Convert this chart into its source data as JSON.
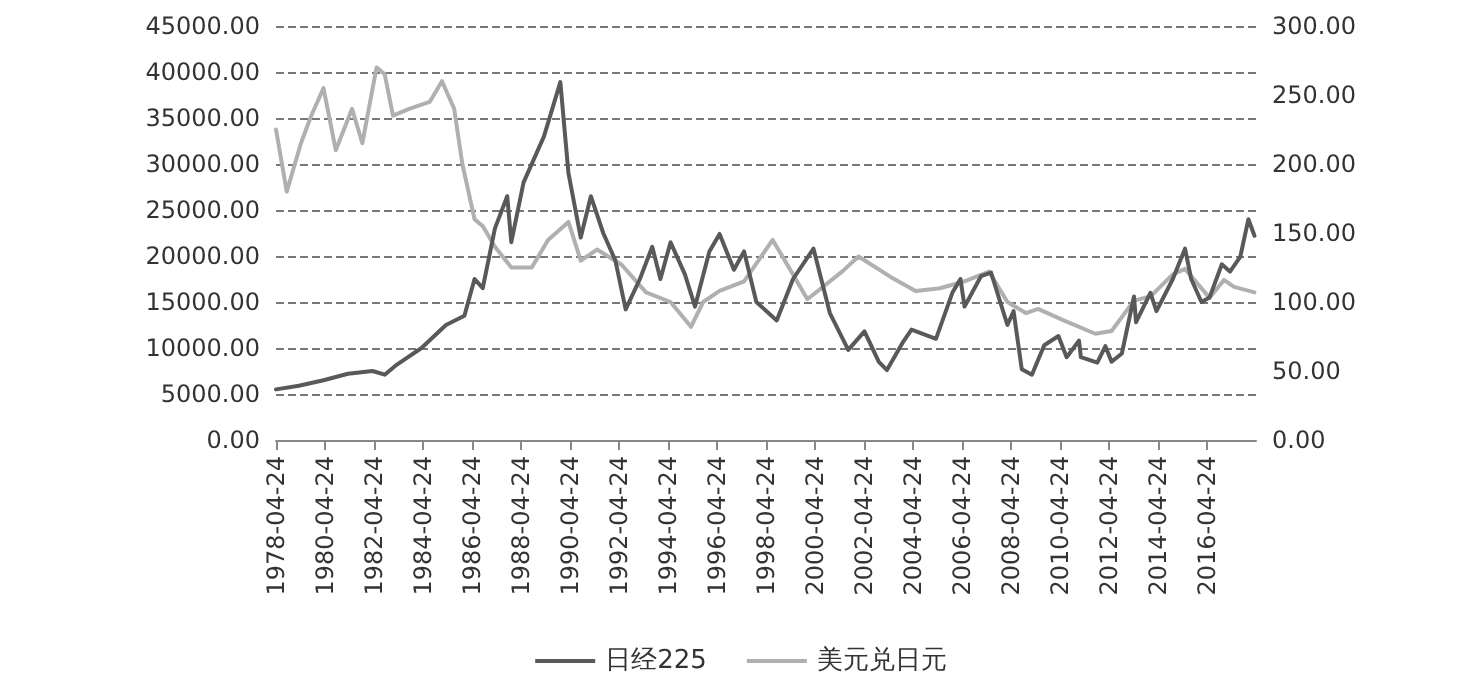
{
  "chart_data": {
    "type": "line",
    "xlim": [
      "1978-04-24",
      "2018-04-24"
    ],
    "xticks": [
      "1978-04-24",
      "1980-04-24",
      "1982-04-24",
      "1984-04-24",
      "1986-04-24",
      "1988-04-24",
      "1990-04-24",
      "1992-04-24",
      "1994-04-24",
      "1996-04-24",
      "1998-04-24",
      "2000-04-24",
      "2002-04-24",
      "2004-04-24",
      "2006-04-24",
      "2008-04-24",
      "2010-04-24",
      "2012-04-24",
      "2014-04-24",
      "2016-04-24"
    ],
    "ylim": [
      0,
      45000
    ],
    "yticks": [
      {
        "value": 0,
        "label": "0.00"
      },
      {
        "value": 5000,
        "label": "5000.00"
      },
      {
        "value": 10000,
        "label": "10000.00"
      },
      {
        "value": 15000,
        "label": "15000.00"
      },
      {
        "value": 20000,
        "label": "20000.00"
      },
      {
        "value": 25000,
        "label": "25000.00"
      },
      {
        "value": 30000,
        "label": "30000.00"
      },
      {
        "value": 35000,
        "label": "35000.00"
      },
      {
        "value": 40000,
        "label": "40000.00"
      },
      {
        "value": 45000,
        "label": "45000.00"
      }
    ],
    "y2lim": [
      0,
      300
    ],
    "y2ticks": [
      {
        "value": 0,
        "label": "0.00"
      },
      {
        "value": 50,
        "label": "50.00"
      },
      {
        "value": 100,
        "label": "100.00"
      },
      {
        "value": 150,
        "label": "150.00"
      },
      {
        "value": 200,
        "label": "200.00"
      },
      {
        "value": 250,
        "label": "250.00"
      },
      {
        "value": 300,
        "label": "300.00"
      }
    ],
    "grid": "y",
    "legend": "bottom",
    "marker": "none",
    "line_style": "solid",
    "series": [
      {
        "name": "日经225",
        "color": "#595959",
        "x": [
          "1978-04-24",
          "1979-04",
          "1980-04",
          "1981-04",
          "1982-04",
          "1982-10",
          "1983-04",
          "1984-04",
          "1985-04",
          "1986-01",
          "1986-06",
          "1986-10",
          "1987-04",
          "1987-10",
          "1987-12",
          "1988-06",
          "1989-04",
          "1989-12",
          "1990-04",
          "1990-10",
          "1991-03",
          "1991-09",
          "1992-03",
          "1992-08",
          "1993-03",
          "1993-09",
          "1994-01",
          "1994-06",
          "1995-01",
          "1995-06",
          "1996-01",
          "1996-06",
          "1997-01",
          "1997-06",
          "1997-12",
          "1998-10",
          "1999-06",
          "2000-04",
          "2000-12",
          "2001-09",
          "2002-05",
          "2002-12",
          "2003-04",
          "2003-12",
          "2004-04",
          "2005-04",
          "2005-12",
          "2006-04",
          "2006-06",
          "2007-02",
          "2007-07",
          "2008-03",
          "2008-06",
          "2008-10",
          "2009-03",
          "2009-09",
          "2010-04",
          "2010-08",
          "2011-02",
          "2011-03",
          "2011-11",
          "2012-03",
          "2012-06",
          "2012-11",
          "2013-05",
          "2013-06",
          "2014-01",
          "2014-04",
          "2014-12",
          "2015-06",
          "2015-09",
          "2016-02",
          "2016-06",
          "2016-12",
          "2017-04",
          "2017-09",
          "2018-01",
          "2018-04"
        ],
        "values": [
          5500,
          5900,
          6500,
          7200,
          7500,
          7100,
          8200,
          10000,
          12500,
          13500,
          17500,
          16500,
          23000,
          26500,
          21500,
          28000,
          33000,
          38900,
          29000,
          22000,
          26500,
          22500,
          19500,
          14200,
          17500,
          21000,
          17500,
          21500,
          18000,
          14500,
          20500,
          22400,
          18500,
          20500,
          15000,
          13000,
          17500,
          20800,
          13800,
          9800,
          11800,
          8500,
          7600,
          10700,
          12000,
          11000,
          16000,
          17500,
          14500,
          17800,
          18200,
          12500,
          14000,
          7700,
          7100,
          10300,
          11300,
          9000,
          10800,
          9000,
          8400,
          10200,
          8500,
          9400,
          15600,
          12800,
          16000,
          14000,
          17500,
          20800,
          17500,
          15000,
          15500,
          19100,
          18300,
          19900,
          24000,
          22200
        ]
      },
      {
        "name": "美元兑日元",
        "color": "#b0b0b0",
        "axis": "y2",
        "x": [
          "1978-04-24",
          "1978-10",
          "1979-05",
          "1979-10",
          "1980-04",
          "1980-10",
          "1981-06",
          "1981-11",
          "1982-06",
          "1982-10",
          "1983-02",
          "1983-10",
          "1984-08",
          "1985-02",
          "1985-08",
          "1985-12",
          "1986-06",
          "1986-10",
          "1987-04",
          "1987-12",
          "1988-10",
          "1989-06",
          "1990-04",
          "1990-10",
          "1991-06",
          "1992-06",
          "1993-06",
          "1994-06",
          "1995-04",
          "1995-10",
          "1996-06",
          "1997-06",
          "1998-08",
          "1999-06",
          "2000-01",
          "2001-06",
          "2002-02",
          "2003-06",
          "2004-06",
          "2005-06",
          "2006-06",
          "2007-06",
          "2008-03",
          "2008-12",
          "2009-06",
          "2010-06",
          "2011-10",
          "2012-06",
          "2013-05",
          "2014-01",
          "2014-12",
          "2015-06",
          "2016-06",
          "2017-01",
          "2017-06",
          "2018-04"
        ],
        "values": [
          225,
          180,
          215,
          235,
          255,
          210,
          240,
          215,
          270,
          265,
          235,
          240,
          245,
          260,
          240,
          200,
          160,
          155,
          140,
          125,
          125,
          145,
          158,
          130,
          138,
          127,
          107,
          100,
          82,
          100,
          108,
          115,
          145,
          120,
          102,
          122,
          133,
          118,
          108,
          110,
          115,
          122,
          100,
          92,
          95,
          87,
          77,
          79,
          101,
          104,
          120,
          124,
          103,
          116,
          111,
          107
        ]
      }
    ]
  }
}
